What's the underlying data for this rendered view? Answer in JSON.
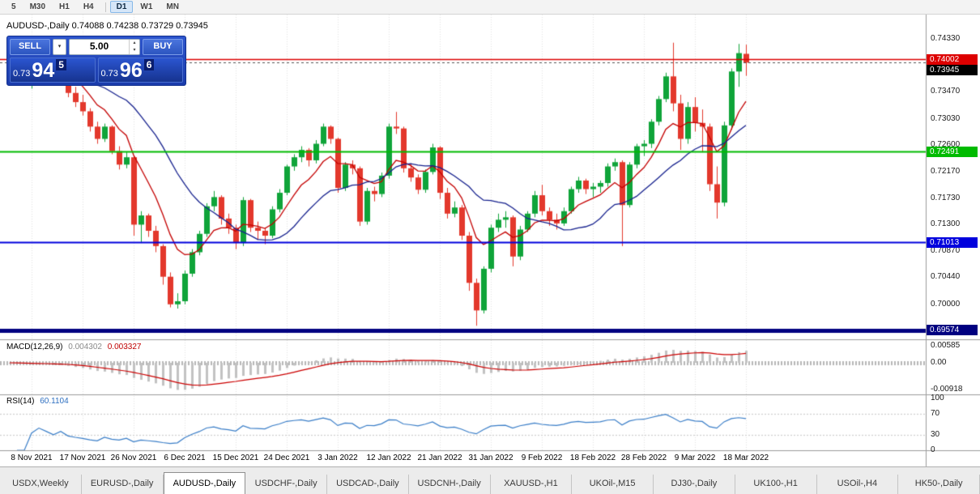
{
  "toolbar": {
    "buttons": [
      "5",
      "M30",
      "H1",
      "H4",
      "D1",
      "W1",
      "MN"
    ],
    "active": "D1",
    "divider_after": "H4"
  },
  "trade_panel": {
    "sell_label": "SELL",
    "buy_label": "BUY",
    "volume": "5.00",
    "dropdown_glyph": "▾",
    "spin_up_glyph": "▴",
    "spin_down_glyph": "▾",
    "sell_price": {
      "prefix": "0.73",
      "big": "94",
      "sup": "5"
    },
    "buy_price": {
      "prefix": "0.73",
      "big": "96",
      "sup": "6"
    }
  },
  "chart_data": {
    "type": "candlestick",
    "title": "AUDUSD-,Daily 0.74088 0.74238 0.73729 0.73945",
    "symbol": "AUDUSD-",
    "timeframe": "Daily",
    "ohlc_last": {
      "open": "0.74088",
      "high": "0.74238",
      "low": "0.73729",
      "close": "0.73945"
    },
    "colors": {
      "up": "#0fa439",
      "down": "#e3382c",
      "grid": "#e3e3e3",
      "ma_fast": "#c40000",
      "ma_slow": "#16218e",
      "macd_hist": "#c2c2c2",
      "macd_signal": "#cc0000",
      "rsi": "#3a7ec8",
      "bid_line": "#555555"
    },
    "candles": [
      [
        0.7385,
        0.7418,
        0.738,
        0.741
      ],
      [
        0.741,
        0.7422,
        0.7392,
        0.7398
      ],
      [
        0.7398,
        0.7405,
        0.7362,
        0.737
      ],
      [
        0.737,
        0.74,
        0.7352,
        0.739
      ],
      [
        0.739,
        0.7405,
        0.7382,
        0.74
      ],
      [
        0.74,
        0.7406,
        0.738,
        0.7388
      ],
      [
        0.7388,
        0.7394,
        0.736,
        0.737
      ],
      [
        0.737,
        0.7388,
        0.7365,
        0.738
      ],
      [
        0.738,
        0.7382,
        0.7338,
        0.7345
      ],
      [
        0.7345,
        0.7355,
        0.7322,
        0.733
      ],
      [
        0.733,
        0.7342,
        0.7308,
        0.7315
      ],
      [
        0.7315,
        0.732,
        0.7282,
        0.729
      ],
      [
        0.729,
        0.7298,
        0.7262,
        0.727
      ],
      [
        0.727,
        0.7295,
        0.7265,
        0.729
      ],
      [
        0.729,
        0.7292,
        0.7245,
        0.725
      ],
      [
        0.725,
        0.7258,
        0.722,
        0.7228
      ],
      [
        0.7228,
        0.7248,
        0.7222,
        0.724
      ],
      [
        0.724,
        0.7242,
        0.7112,
        0.713
      ],
      [
        0.713,
        0.7152,
        0.71,
        0.7145
      ],
      [
        0.7145,
        0.7148,
        0.711,
        0.712
      ],
      [
        0.712,
        0.7128,
        0.7085,
        0.7095
      ],
      [
        0.7095,
        0.7098,
        0.7032,
        0.7045
      ],
      [
        0.7045,
        0.7052,
        0.6995,
        0.7
      ],
      [
        0.7,
        0.7018,
        0.6993,
        0.7005
      ],
      [
        0.7005,
        0.7055,
        0.7,
        0.705
      ],
      [
        0.705,
        0.709,
        0.7045,
        0.7085
      ],
      [
        0.7085,
        0.712,
        0.708,
        0.7115
      ],
      [
        0.7115,
        0.7165,
        0.711,
        0.716
      ],
      [
        0.716,
        0.7185,
        0.7152,
        0.7175
      ],
      [
        0.7175,
        0.7178,
        0.713,
        0.714
      ],
      [
        0.714,
        0.7148,
        0.7115,
        0.7125
      ],
      [
        0.7125,
        0.713,
        0.709,
        0.71
      ],
      [
        0.71,
        0.7175,
        0.7095,
        0.717
      ],
      [
        0.717,
        0.7172,
        0.7118,
        0.7125
      ],
      [
        0.7125,
        0.7135,
        0.7105,
        0.712
      ],
      [
        0.712,
        0.7125,
        0.7098,
        0.7112
      ],
      [
        0.7112,
        0.716,
        0.7108,
        0.7155
      ],
      [
        0.7155,
        0.7188,
        0.715,
        0.7182
      ],
      [
        0.7182,
        0.7228,
        0.7178,
        0.7225
      ],
      [
        0.7225,
        0.7245,
        0.7218,
        0.724
      ],
      [
        0.724,
        0.7258,
        0.7232,
        0.7252
      ],
      [
        0.7252,
        0.7255,
        0.7225,
        0.7235
      ],
      [
        0.7235,
        0.7268,
        0.723,
        0.7262
      ],
      [
        0.7262,
        0.7295,
        0.7258,
        0.729
      ],
      [
        0.729,
        0.7292,
        0.7262,
        0.727
      ],
      [
        0.727,
        0.7272,
        0.7182,
        0.719
      ],
      [
        0.719,
        0.7232,
        0.7185,
        0.7228
      ],
      [
        0.7228,
        0.7235,
        0.7212,
        0.7222
      ],
      [
        0.7222,
        0.7225,
        0.7128,
        0.7135
      ],
      [
        0.7135,
        0.719,
        0.713,
        0.7185
      ],
      [
        0.7185,
        0.7192,
        0.7168,
        0.718
      ],
      [
        0.718,
        0.7215,
        0.7175,
        0.721
      ],
      [
        0.721,
        0.7295,
        0.7205,
        0.729
      ],
      [
        0.729,
        0.7314,
        0.7278,
        0.7287
      ],
      [
        0.7287,
        0.729,
        0.7215,
        0.7222
      ],
      [
        0.7222,
        0.723,
        0.72,
        0.7207
      ],
      [
        0.7207,
        0.7212,
        0.718,
        0.7187
      ],
      [
        0.7187,
        0.722,
        0.7182,
        0.7216
      ],
      [
        0.7216,
        0.7262,
        0.7212,
        0.7256
      ],
      [
        0.7256,
        0.7258,
        0.7172,
        0.7182
      ],
      [
        0.7182,
        0.719,
        0.714,
        0.7148
      ],
      [
        0.7148,
        0.7168,
        0.7142,
        0.7158
      ],
      [
        0.7158,
        0.7162,
        0.7105,
        0.7112
      ],
      [
        0.7112,
        0.7118,
        0.7022,
        0.7035
      ],
      [
        0.7035,
        0.7042,
        0.6965,
        0.699
      ],
      [
        0.699,
        0.7062,
        0.6985,
        0.7058
      ],
      [
        0.7058,
        0.713,
        0.7052,
        0.7125
      ],
      [
        0.7125,
        0.7148,
        0.7118,
        0.7138
      ],
      [
        0.7138,
        0.7152,
        0.7125,
        0.7142
      ],
      [
        0.7142,
        0.7145,
        0.7062,
        0.7078
      ],
      [
        0.7078,
        0.7128,
        0.7072,
        0.7122
      ],
      [
        0.7122,
        0.7152,
        0.7118,
        0.7148
      ],
      [
        0.7148,
        0.7185,
        0.7142,
        0.7178
      ],
      [
        0.7178,
        0.7195,
        0.7145,
        0.7152
      ],
      [
        0.7152,
        0.7158,
        0.7128,
        0.7138
      ],
      [
        0.7138,
        0.7148,
        0.7122,
        0.7132
      ],
      [
        0.7132,
        0.7158,
        0.7128,
        0.7152
      ],
      [
        0.7152,
        0.7192,
        0.7148,
        0.7188
      ],
      [
        0.7188,
        0.7208,
        0.7182,
        0.7202
      ],
      [
        0.7202,
        0.7205,
        0.718,
        0.7188
      ],
      [
        0.7188,
        0.7198,
        0.7175,
        0.7192
      ],
      [
        0.7192,
        0.7202,
        0.7182,
        0.7198
      ],
      [
        0.7198,
        0.723,
        0.7192,
        0.7225
      ],
      [
        0.7225,
        0.7238,
        0.7218,
        0.7232
      ],
      [
        0.7232,
        0.7235,
        0.7095,
        0.7162
      ],
      [
        0.7162,
        0.7232,
        0.7158,
        0.7228
      ],
      [
        0.7228,
        0.7262,
        0.7222,
        0.7258
      ],
      [
        0.7258,
        0.7268,
        0.7242,
        0.7262
      ],
      [
        0.7262,
        0.7302,
        0.7255,
        0.7298
      ],
      [
        0.7298,
        0.734,
        0.7292,
        0.7335
      ],
      [
        0.7335,
        0.7378,
        0.733,
        0.7372
      ],
      [
        0.7372,
        0.7427,
        0.7315,
        0.7328
      ],
      [
        0.7328,
        0.7342,
        0.7252,
        0.727
      ],
      [
        0.727,
        0.733,
        0.7262,
        0.7322
      ],
      [
        0.7322,
        0.7338,
        0.7282,
        0.7296
      ],
      [
        0.7296,
        0.7318,
        0.7248,
        0.729
      ],
      [
        0.729,
        0.7295,
        0.7185,
        0.7196
      ],
      [
        0.7196,
        0.7225,
        0.714,
        0.7166
      ],
      [
        0.7166,
        0.7298,
        0.716,
        0.7292
      ],
      [
        0.7292,
        0.7385,
        0.7285,
        0.738
      ],
      [
        0.738,
        0.7425,
        0.7355,
        0.741
      ],
      [
        0.74088,
        0.74238,
        0.73729,
        0.73945
      ]
    ],
    "ma_overlays": [
      {
        "type": "ema",
        "period": 8,
        "color_key": "ma_fast"
      },
      {
        "type": "sma",
        "period": 18,
        "color_key": "ma_slow"
      }
    ],
    "levels": [
      {
        "price": 0.74002,
        "label": "0.74002",
        "color": "#dd0000",
        "width": 1.5
      },
      {
        "price": 0.73945,
        "label": "0.73945",
        "color": "#000000",
        "width": 1,
        "dash": true,
        "is_bid": true
      },
      {
        "price": 0.72491,
        "label": "0.72491",
        "color": "#00bb00",
        "width": 2
      },
      {
        "price": 0.71013,
        "label": "0.71013",
        "color": "#0000dd",
        "width": 2
      },
      {
        "price": 0.69574,
        "label": "0.69574",
        "color": "#000080",
        "width": 5
      }
    ],
    "price_ticks": [
      {
        "label": "0.74330",
        "price": 0.7433
      },
      {
        "label": "0.73470",
        "price": 0.7347
      },
      {
        "label": "0.73030",
        "price": 0.7303
      },
      {
        "label": "0.72600",
        "price": 0.726
      },
      {
        "label": "0.72170",
        "price": 0.7217
      },
      {
        "label": "0.71730",
        "price": 0.7173
      },
      {
        "label": "0.71300",
        "price": 0.713
      },
      {
        "label": "0.70870",
        "price": 0.7087
      },
      {
        "label": "0.70440",
        "price": 0.7044
      },
      {
        "label": "0.70000",
        "price": 0.7
      }
    ],
    "time_ticks": {
      "start_index": 3,
      "step": 7,
      "labels": [
        "8 Nov 2021",
        "17 Nov 2021",
        "26 Nov 2021",
        "6 Dec 2021",
        "15 Dec 2021",
        "24 Dec 2021",
        "3 Jan 2022",
        "12 Jan 2022",
        "21 Jan 2022",
        "31 Jan 2022",
        "9 Feb 2022",
        "18 Feb 2022",
        "28 Feb 2022",
        "9 Mar 2022",
        "18 Mar 2022"
      ]
    },
    "indicators": {
      "macd": {
        "name": "MACD(12,26,9)",
        "value_main": "0.004302",
        "value_signal": "0.003327",
        "fast": 12,
        "slow": 26,
        "signal": 9,
        "axis": [
          {
            "label": "0.00585",
            "value": 0.00585
          },
          {
            "label": "0.00",
            "value": 0
          },
          {
            "label": "-0.00918",
            "value": -0.00918
          }
        ]
      },
      "rsi": {
        "name": "RSI(14)",
        "value": "60.1104",
        "period": 14,
        "axis": [
          {
            "label": "100",
            "value": 100
          },
          {
            "label": "70",
            "value": 70
          },
          {
            "label": "30",
            "value": 30
          },
          {
            "label": "0",
            "value": 0
          }
        ],
        "levels": [
          70,
          30
        ]
      }
    }
  },
  "tabs": {
    "items": [
      "USDX,Weekly",
      "EURUSD-,Daily",
      "AUDUSD-,Daily",
      "USDCHF-,Daily",
      "USDCAD-,Daily",
      "USDCNH-,Daily",
      "XAUUSD-,H1",
      "UKOil-,M15",
      "DJ30-,Daily",
      "UK100-,H1",
      "USOil-,H4",
      "HK50-,Daily"
    ],
    "active_index": 2
  }
}
